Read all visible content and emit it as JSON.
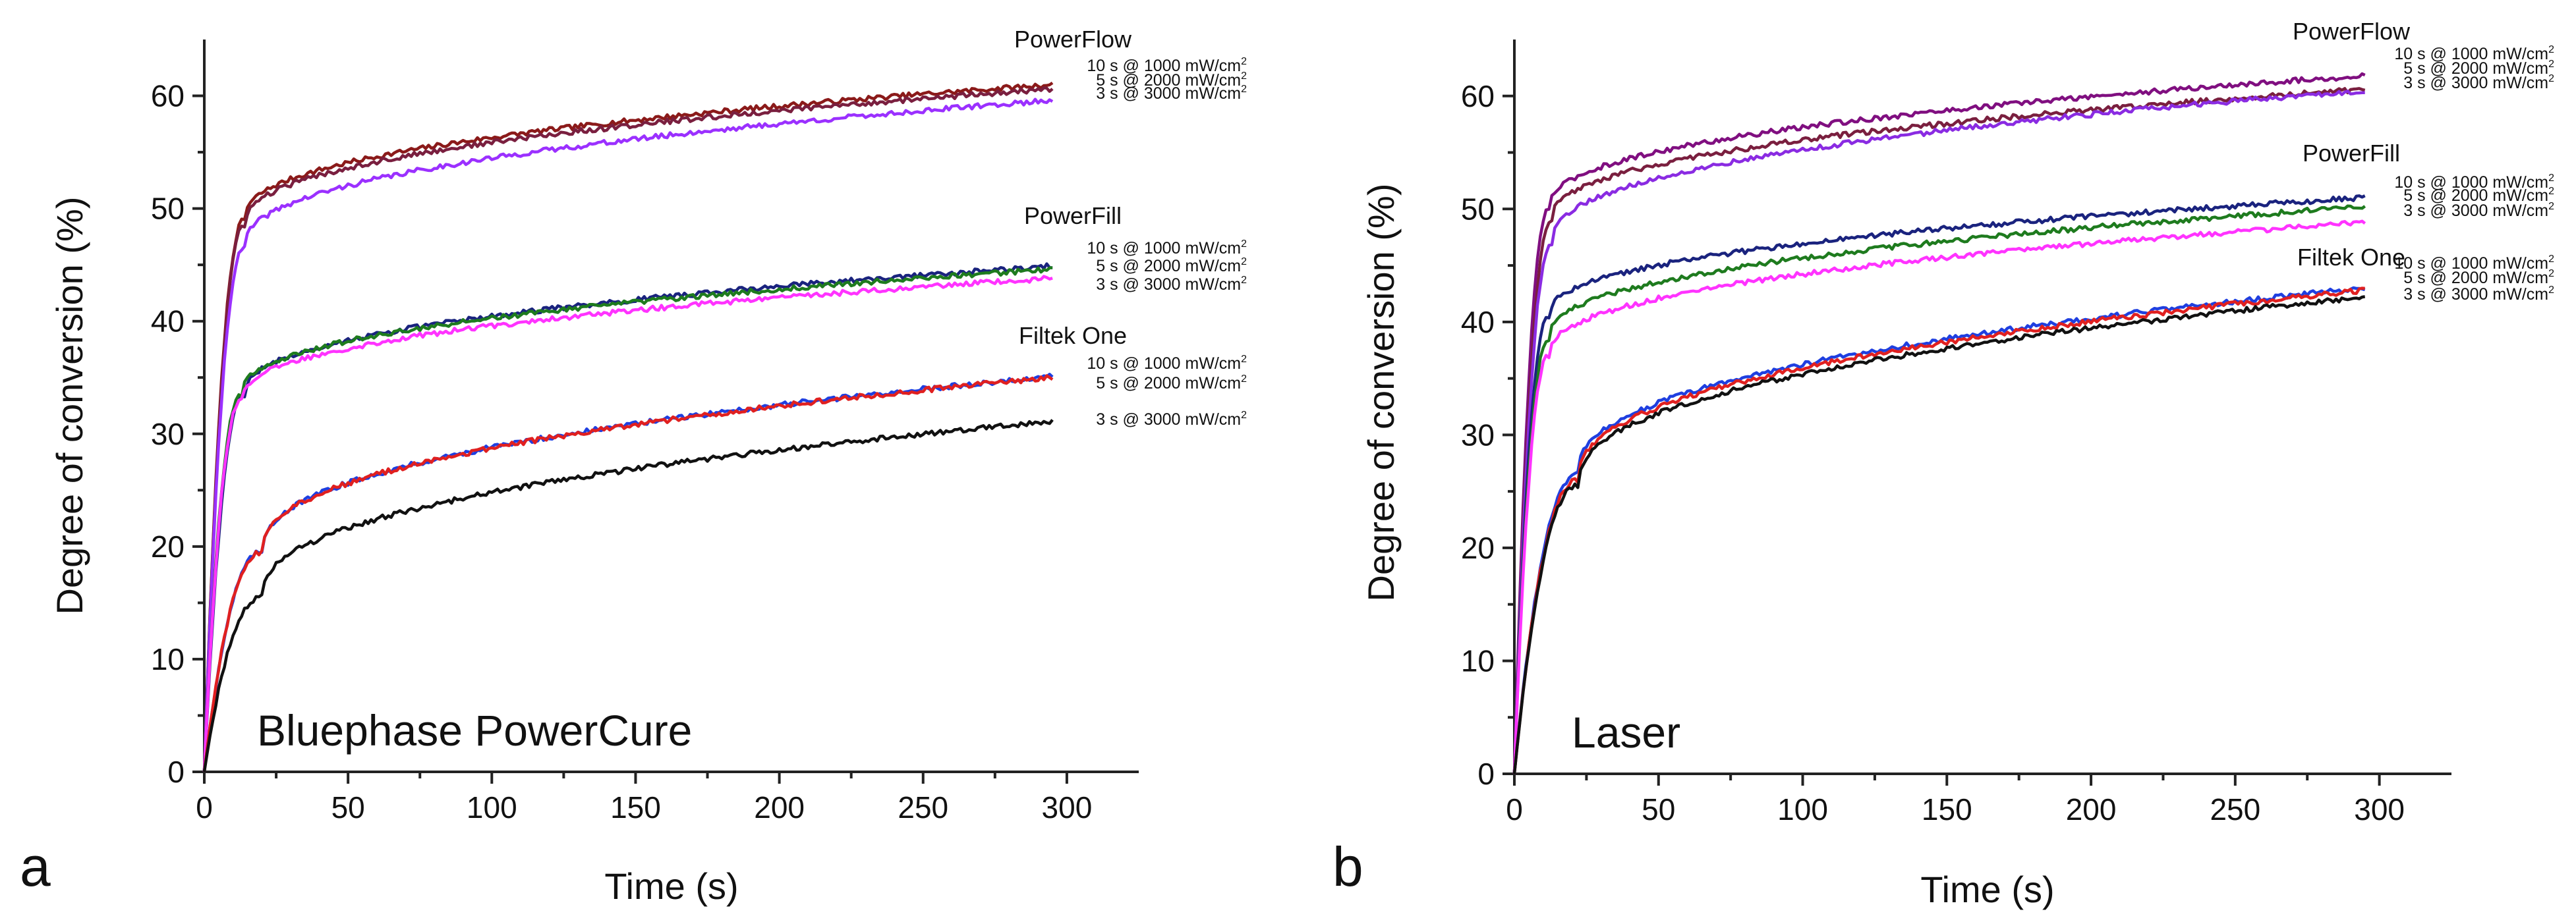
{
  "chart_data": [
    {
      "type": "line",
      "panel_letter": "a",
      "title": "Bluephase PowerCure",
      "xlabel": "Time (s)",
      "ylabel": "Degree of conversion (%)",
      "xlim": [
        0,
        325
      ],
      "ylim": [
        0,
        65
      ],
      "xticks": [
        0,
        50,
        100,
        150,
        200,
        250,
        300
      ],
      "yticks": [
        0,
        10,
        20,
        30,
        40,
        50,
        60
      ],
      "groups": [
        {
          "name": "PowerFlow",
          "series": [
            {
              "name": "10 s @ 1000 mW/cm",
              "sup": "2",
              "color": "#8b1a1a",
              "final": 61.0,
              "knee": 49.0,
              "kneeT": 14
            },
            {
              "name": "5 s @ 2000 mW/cm",
              "sup": "2",
              "color": "#7a1f3f",
              "final": 60.6,
              "knee": 48.5,
              "kneeT": 14
            },
            {
              "name": "3 s @ 3000 mW/cm",
              "sup": "2",
              "color": "#9b30ff",
              "final": 59.6,
              "knee": 46.5,
              "kneeT": 14
            }
          ]
        },
        {
          "name": "PowerFill",
          "series": [
            {
              "name": "10 s @ 1000 mW/cm",
              "sup": "2",
              "color": "#1a237e",
              "final": 44.9,
              "knee": 33.5,
              "kneeT": 14
            },
            {
              "name": "5 s @ 2000 mW/cm",
              "sup": "2",
              "color": "#1e7b1e",
              "final": 44.6,
              "knee": 33.5,
              "kneeT": 13
            },
            {
              "name": "3 s @ 3000 mW/cm",
              "sup": "2",
              "color": "#ff33ff",
              "final": 43.8,
              "knee": 33.0,
              "kneeT": 13
            }
          ]
        },
        {
          "name": "Filtek One",
          "series": [
            {
              "name": "10 s @ 1000 mW/cm",
              "sup": "2",
              "color": "#1f3fe0",
              "final": 35.1,
              "knee": 19.5,
              "kneeT": 20
            },
            {
              "name": "5 s @ 2000 mW/cm",
              "sup": "2",
              "color": "#e02020",
              "final": 35.0,
              "knee": 19.5,
              "kneeT": 20
            },
            {
              "name": "3 s @ 3000 mW/cm",
              "sup": "2",
              "color": "#111111",
              "final": 31.1,
              "knee": 15.5,
              "kneeT": 20
            }
          ]
        }
      ]
    },
    {
      "type": "line",
      "panel_letter": "b",
      "title": "Laser",
      "xlabel": "Time (s)",
      "ylabel": "Degree of conversion (%)",
      "xlim": [
        0,
        325
      ],
      "ylim": [
        0,
        65
      ],
      "xticks": [
        0,
        50,
        100,
        150,
        200,
        250,
        300
      ],
      "yticks": [
        0,
        10,
        20,
        30,
        40,
        50,
        60
      ],
      "groups": [
        {
          "name": "PowerFlow",
          "series": [
            {
              "name": "10 s @ 1000 mW/cm",
              "sup": "2",
              "color": "#800f80",
              "final": 61.8,
              "knee": 50.0,
              "kneeT": 12
            },
            {
              "name": "5 s @ 2000 mW/cm",
              "sup": "2",
              "color": "#7a1f3f",
              "final": 60.6,
              "knee": 49.0,
              "kneeT": 13
            },
            {
              "name": "3 s @ 3000 mW/cm",
              "sup": "2",
              "color": "#8a2be2",
              "final": 60.5,
              "knee": 47.0,
              "kneeT": 13
            }
          ]
        },
        {
          "name": "PowerFill",
          "series": [
            {
              "name": "10 s @ 1000 mW/cm",
              "sup": "2",
              "color": "#1a237e",
              "final": 51.0,
              "knee": 40.5,
              "kneeT": 12
            },
            {
              "name": "5 s @ 2000 mW/cm",
              "sup": "2",
              "color": "#1e7b1e",
              "final": 50.2,
              "knee": 38.5,
              "kneeT": 12
            },
            {
              "name": "3 s @ 3000 mW/cm",
              "sup": "2",
              "color": "#ff33ff",
              "final": 48.8,
              "knee": 37.0,
              "kneeT": 12
            }
          ]
        },
        {
          "name": "Filtek One",
          "series": [
            {
              "name": "10 s @ 1000 mW/cm",
              "sup": "2",
              "color": "#1f3fe0",
              "final": 43.0,
              "knee": 26.5,
              "kneeT": 22
            },
            {
              "name": "5 s @ 2000 mW/cm",
              "sup": "2",
              "color": "#e02020",
              "final": 42.8,
              "knee": 26.0,
              "kneeT": 22
            },
            {
              "name": "3 s @ 3000 mW/cm",
              "sup": "2",
              "color": "#111111",
              "final": 42.2,
              "knee": 25.5,
              "kneeT": 22
            }
          ]
        }
      ]
    }
  ]
}
